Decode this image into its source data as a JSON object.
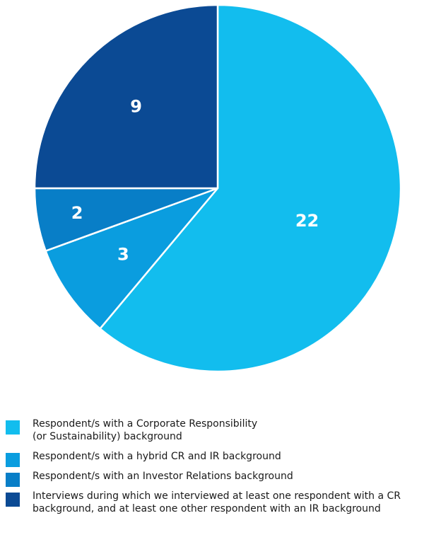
{
  "chart_data": {
    "type": "pie",
    "slices": [
      {
        "label": "Respondent/s with a Corporate Responsibility\n(or Sustainability) background",
        "value": 22,
        "color": "#12bdee"
      },
      {
        "label": "Respondent/s with a hybrid CR and IR background",
        "value": 3,
        "color": "#0a9ddf"
      },
      {
        "label": "Respondent/s with an Investor Relations background",
        "value": 2,
        "color": "#087ec7"
      },
      {
        "label": "Interviews during which we interviewed at least one respondent with a CR background, and at least one other respondent with an IR background",
        "value": 9,
        "color": "#0b4a94"
      }
    ],
    "legend_position": "bottom"
  }
}
